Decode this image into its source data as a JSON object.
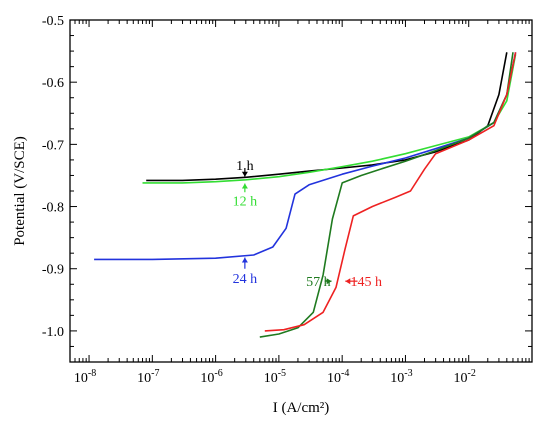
{
  "chart_data": {
    "type": "line",
    "title": "",
    "xlabel": "I (A/cm²)",
    "ylabel": "Potential (V/SCE)",
    "xscale": "log",
    "xlim": [
      5e-09,
      0.1
    ],
    "ylim": [
      -1.05,
      -0.5
    ],
    "x_ticks": [
      1e-08,
      1e-07,
      1e-06,
      1e-05,
      0.0001,
      0.001,
      0.01
    ],
    "x_tick_labels": [
      "10",
      "10",
      "10",
      "10",
      "10",
      "10",
      "10"
    ],
    "x_tick_exponents": [
      "-8",
      "-7",
      "-6",
      "-5",
      "-4",
      "-3",
      "-2"
    ],
    "y_ticks": [
      -1.0,
      -0.9,
      -0.8,
      -0.7,
      -0.6,
      -0.5
    ],
    "y_tick_labels": [
      "-1.0",
      "-0.9",
      "-0.8",
      "-0.7",
      "-0.6",
      "-0.5"
    ],
    "grid": false,
    "legend": "none",
    "series": [
      {
        "label": "1 h",
        "color": "#000000",
        "points": [
          [
            8e-08,
            -0.758
          ],
          [
            3e-07,
            -0.758
          ],
          [
            1e-06,
            -0.756
          ],
          [
            3e-06,
            -0.753
          ],
          [
            1e-05,
            -0.748
          ],
          [
            3e-05,
            -0.743
          ],
          [
            0.0001,
            -0.738
          ],
          [
            0.0003,
            -0.733
          ],
          [
            0.001,
            -0.725
          ],
          [
            0.003,
            -0.712
          ],
          [
            0.01,
            -0.693
          ],
          [
            0.02,
            -0.67
          ],
          [
            0.03,
            -0.62
          ],
          [
            0.04,
            -0.552
          ]
        ]
      },
      {
        "label": "12 h",
        "color": "#33dd33",
        "points": [
          [
            7e-08,
            -0.762
          ],
          [
            3e-07,
            -0.762
          ],
          [
            1e-06,
            -0.76
          ],
          [
            3e-06,
            -0.757
          ],
          [
            1e-05,
            -0.752
          ],
          [
            3e-05,
            -0.745
          ],
          [
            0.0001,
            -0.736
          ],
          [
            0.0003,
            -0.727
          ],
          [
            0.001,
            -0.715
          ],
          [
            0.003,
            -0.702
          ],
          [
            0.01,
            -0.688
          ],
          [
            0.025,
            -0.665
          ],
          [
            0.04,
            -0.63
          ],
          [
            0.055,
            -0.555
          ]
        ]
      },
      {
        "label": "24 h",
        "color": "#2233dd",
        "points": [
          [
            1.2e-08,
            -0.885
          ],
          [
            1e-07,
            -0.885
          ],
          [
            1e-06,
            -0.883
          ],
          [
            4e-06,
            -0.878
          ],
          [
            8e-06,
            -0.865
          ],
          [
            1.3e-05,
            -0.835
          ],
          [
            1.8e-05,
            -0.78
          ],
          [
            3e-05,
            -0.765
          ],
          [
            0.0001,
            -0.748
          ],
          [
            0.0003,
            -0.735
          ],
          [
            0.001,
            -0.722
          ],
          [
            0.003,
            -0.707
          ],
          [
            0.01,
            -0.69
          ],
          [
            0.025,
            -0.665
          ],
          [
            0.04,
            -0.62
          ],
          [
            0.055,
            -0.552
          ]
        ]
      },
      {
        "label": "57 h",
        "color": "#1f7a1f",
        "points": [
          [
            5e-06,
            -1.01
          ],
          [
            1e-05,
            -1.005
          ],
          [
            2e-05,
            -0.995
          ],
          [
            3.5e-05,
            -0.97
          ],
          [
            5e-05,
            -0.91
          ],
          [
            7e-05,
            -0.82
          ],
          [
            0.0001,
            -0.762
          ],
          [
            0.0002,
            -0.75
          ],
          [
            0.0004,
            -0.74
          ],
          [
            0.001,
            -0.727
          ],
          [
            0.003,
            -0.71
          ],
          [
            0.01,
            -0.69
          ],
          [
            0.025,
            -0.665
          ],
          [
            0.04,
            -0.62
          ],
          [
            0.05,
            -0.552
          ]
        ]
      },
      {
        "label": "145 h",
        "color": "#ee2222",
        "points": [
          [
            6e-06,
            -1.0
          ],
          [
            1.2e-05,
            -0.998
          ],
          [
            2.5e-05,
            -0.99
          ],
          [
            5e-05,
            -0.97
          ],
          [
            8e-05,
            -0.93
          ],
          [
            0.00011,
            -0.87
          ],
          [
            0.00015,
            -0.815
          ],
          [
            0.0003,
            -0.8
          ],
          [
            0.0007,
            -0.785
          ],
          [
            0.0012,
            -0.775
          ],
          [
            0.002,
            -0.74
          ],
          [
            0.003,
            -0.715
          ],
          [
            0.01,
            -0.693
          ],
          [
            0.025,
            -0.67
          ],
          [
            0.04,
            -0.62
          ],
          [
            0.055,
            -0.552
          ]
        ]
      }
    ],
    "annotations": [
      {
        "text": "1 h",
        "color": "#000000",
        "label_x": 2.9e-06,
        "label_y": -0.733,
        "arrow_from": [
          2.9e-06,
          -0.738
        ],
        "arrow_to": [
          2.9e-06,
          -0.752
        ]
      },
      {
        "text": "12 h",
        "color": "#33dd33",
        "label_x": 2.9e-06,
        "label_y": -0.79,
        "arrow_from": [
          2.9e-06,
          -0.777
        ],
        "arrow_to": [
          2.9e-06,
          -0.763
        ]
      },
      {
        "text": "24 h",
        "color": "#2233dd",
        "label_x": 2.9e-06,
        "label_y": -0.915,
        "arrow_from": [
          2.9e-06,
          -0.9
        ],
        "arrow_to": [
          2.9e-06,
          -0.882
        ]
      },
      {
        "text": "57 h",
        "color": "#1f7a1f",
        "label_x": 4.2e-05,
        "label_y": -0.92,
        "arrow_from": [
          5.3e-05,
          -0.92
        ],
        "arrow_to": [
          6.8e-05,
          -0.92
        ]
      },
      {
        "text": "145 h",
        "color": "#ee2222",
        "label_x": 0.00024,
        "label_y": -0.92,
        "arrow_from": [
          0.000175,
          -0.92
        ],
        "arrow_to": [
          0.000112,
          -0.92
        ]
      }
    ]
  }
}
